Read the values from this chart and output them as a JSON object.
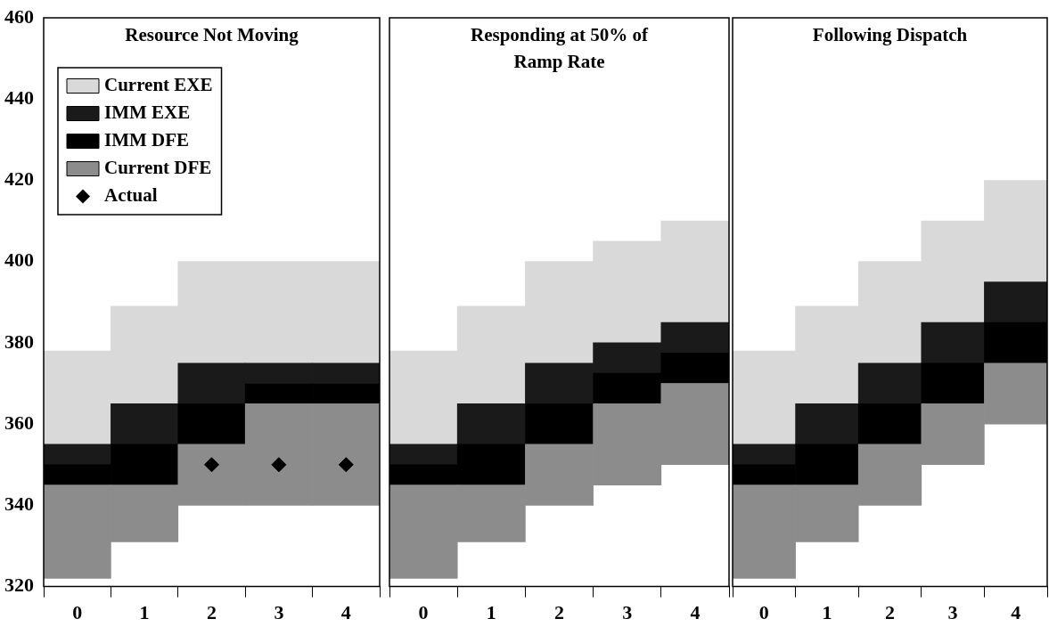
{
  "chart_data": [
    {
      "type": "bar",
      "title": "Resource Not Moving",
      "categories": [
        "0",
        "1",
        "2",
        "3",
        "4"
      ],
      "series": [
        {
          "name": "Current DFE",
          "color": "#8c8c8c",
          "base": [
            322,
            331,
            340,
            340,
            340
          ],
          "values": [
            23,
            14,
            15,
            25,
            25
          ]
        },
        {
          "name": "IMM DFE",
          "color": "#000000",
          "base": [
            345,
            345,
            355,
            365,
            365
          ],
          "values": [
            5,
            10,
            10,
            5,
            5
          ]
        },
        {
          "name": "IMM EXE",
          "color": "#1a1a1a",
          "base": [
            350,
            355,
            365,
            370,
            370
          ],
          "values": [
            5,
            10,
            10,
            5,
            5
          ]
        },
        {
          "name": "Current EXE",
          "color": "#d9d9d9",
          "base": [
            355,
            365,
            375,
            375,
            375
          ],
          "values": [
            23,
            24,
            25,
            25,
            25
          ]
        },
        {
          "name": "Actual",
          "type": "scatter",
          "color": "#000000",
          "values": [
            null,
            null,
            350,
            350,
            350
          ]
        }
      ],
      "marker": "diamond",
      "ylim": [
        320,
        460
      ],
      "yticks": [
        320,
        340,
        360,
        380,
        400,
        420,
        440,
        460
      ],
      "legend": "top left"
    },
    {
      "type": "bar",
      "title": "Responding at 50% of Ramp Rate",
      "categories": [
        "0",
        "1",
        "2",
        "3",
        "4"
      ],
      "series": [
        {
          "color": "#8c8c8c",
          "base": [
            322,
            331,
            340,
            345,
            350
          ],
          "values": [
            23,
            14,
            15,
            20,
            20
          ]
        },
        {
          "color": "#000000",
          "base": [
            345,
            345,
            355,
            365,
            370
          ],
          "values": [
            5,
            10,
            10,
            7.5,
            7.5
          ]
        },
        {
          "color": "#1a1a1a",
          "base": [
            350,
            355,
            365,
            372.5,
            377.5
          ],
          "values": [
            5,
            10,
            10,
            7.5,
            7.5
          ]
        },
        {
          "color": "#d9d9d9",
          "base": [
            355,
            365,
            375,
            380,
            385
          ],
          "values": [
            23,
            24,
            25,
            25,
            25
          ]
        }
      ],
      "ylim": [
        320,
        460
      ],
      "tick_labels": "x"
    },
    {
      "type": "bar",
      "title": "Following Dispatch",
      "categories": [
        "0",
        "1",
        "2",
        "3",
        "4"
      ],
      "series": [
        {
          "color": "#8c8c8c",
          "base": [
            322,
            331,
            340,
            350,
            360
          ],
          "values": [
            23,
            14,
            15,
            15,
            15
          ]
        },
        {
          "color": "#000000",
          "base": [
            345,
            345,
            355,
            365,
            375
          ],
          "values": [
            5,
            10,
            10,
            10,
            10
          ]
        },
        {
          "color": "#1a1a1a",
          "base": [
            350,
            355,
            365,
            375,
            385
          ],
          "values": [
            5,
            10,
            10,
            10,
            10
          ]
        },
        {
          "color": "#d9d9d9",
          "base": [
            355,
            365,
            375,
            385,
            395
          ],
          "values": [
            23,
            24,
            25,
            25,
            25
          ]
        }
      ],
      "ylim": [
        320,
        460
      ],
      "tick_labels": "x"
    }
  ]
}
